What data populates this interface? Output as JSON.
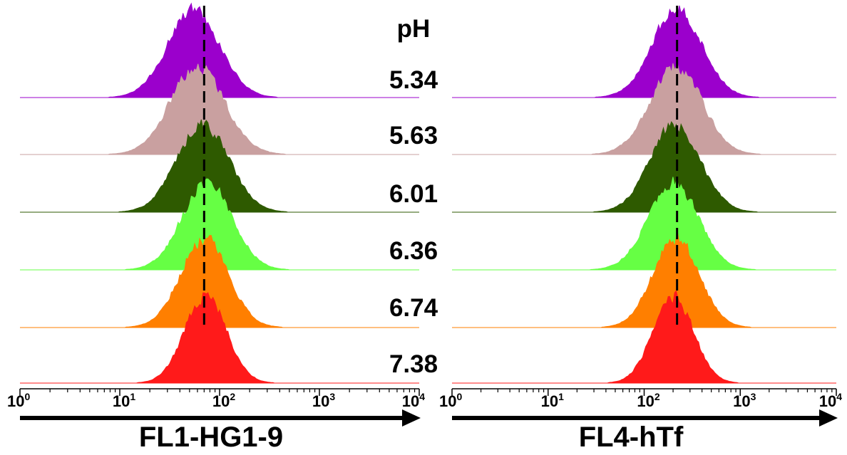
{
  "chart_data": [
    {
      "type": "area",
      "xlabel": "FL1-HG1-9",
      "xscale": "log",
      "xlim": [
        1,
        10000
      ],
      "x_ticks": [
        {
          "base": "10",
          "exp": "0"
        },
        {
          "base": "10",
          "exp": "1"
        },
        {
          "base": "10",
          "exp": "2"
        },
        {
          "base": "10",
          "exp": "3"
        },
        {
          "base": "10",
          "exp": "4"
        }
      ],
      "reference_line_x": 70,
      "series": [
        {
          "name": "5.34",
          "color": "#9b00cc",
          "peak_x": 55,
          "width_decades": 0.26
        },
        {
          "name": "5.63",
          "color": "#c9a0a0",
          "peak_x": 60,
          "width_decades": 0.27
        },
        {
          "name": "6.01",
          "color": "#2e5a00",
          "peak_x": 68,
          "width_decades": 0.26
        },
        {
          "name": "6.36",
          "color": "#66ff44",
          "peak_x": 75,
          "width_decades": 0.25
        },
        {
          "name": "6.74",
          "color": "#ff7f00",
          "peak_x": 70,
          "width_decades": 0.24
        },
        {
          "name": "7.38",
          "color": "#ff1a1a",
          "peak_x": 72,
          "width_decades": 0.21
        }
      ]
    },
    {
      "type": "area",
      "xlabel": "FL4-hTf",
      "xscale": "log",
      "xlim": [
        1,
        10000
      ],
      "x_ticks": [
        {
          "base": "10",
          "exp": "0"
        },
        {
          "base": "10",
          "exp": "1"
        },
        {
          "base": "10",
          "exp": "2"
        },
        {
          "base": "10",
          "exp": "3"
        },
        {
          "base": "10",
          "exp": "4"
        }
      ],
      "reference_line_x": 220,
      "series": [
        {
          "name": "5.34",
          "color": "#9b00cc",
          "peak_x": 220,
          "width_decades": 0.26
        },
        {
          "name": "5.63",
          "color": "#c9a0a0",
          "peak_x": 215,
          "width_decades": 0.27
        },
        {
          "name": "6.01",
          "color": "#2e5a00",
          "peak_x": 210,
          "width_decades": 0.26
        },
        {
          "name": "6.36",
          "color": "#66ff44",
          "peak_x": 200,
          "width_decades": 0.26
        },
        {
          "name": "6.74",
          "color": "#ff7f00",
          "peak_x": 215,
          "width_decades": 0.24
        },
        {
          "name": "7.38",
          "color": "#ff1a1a",
          "peak_x": 200,
          "width_decades": 0.21
        }
      ]
    }
  ],
  "ph_header": "pH"
}
